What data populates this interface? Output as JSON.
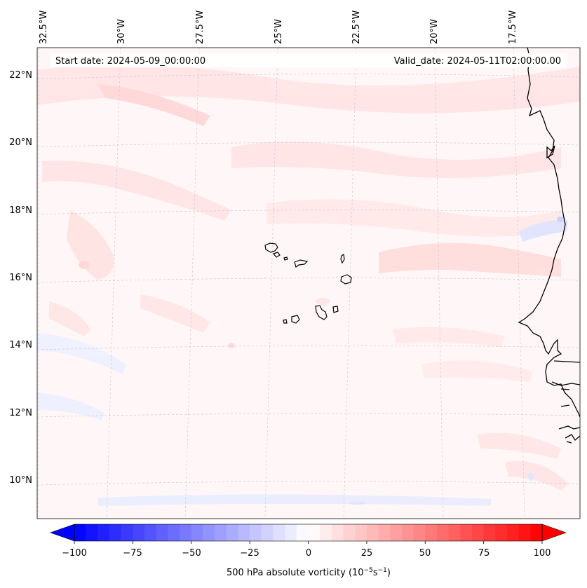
{
  "annotations": {
    "start_date": "Start date: 2024-05-09_00:00:00",
    "valid_date": "Valid_date: 2024-05-11T02:00:00.00"
  },
  "lon_labels": [
    "32.5°W",
    "30°W",
    "27.5°W",
    "25°W",
    "22.5°W",
    "20°W",
    "17.5°W"
  ],
  "lat_labels": [
    "22°N",
    "20°N",
    "18°N",
    "16°N",
    "14°N",
    "12°N",
    "10°N"
  ],
  "colorbar": {
    "ticks": [
      "−100",
      "−75",
      "−50",
      "−25",
      "0",
      "25",
      "50",
      "75",
      "100"
    ],
    "label_prefix": "500 hPa absolute vorticity (10",
    "label_exp1": "−5",
    "label_mid": "s",
    "label_exp2": "−1",
    "label_suffix": ")",
    "min": -100,
    "max": 100,
    "levels": 41,
    "colormap": "bwr"
  },
  "colors": {
    "map_background": "#fff7f7",
    "positive_band": "#ffe6e6",
    "negative_band": "#eef0ff",
    "coastline": "#000000",
    "gridline": "#cccccc"
  }
}
